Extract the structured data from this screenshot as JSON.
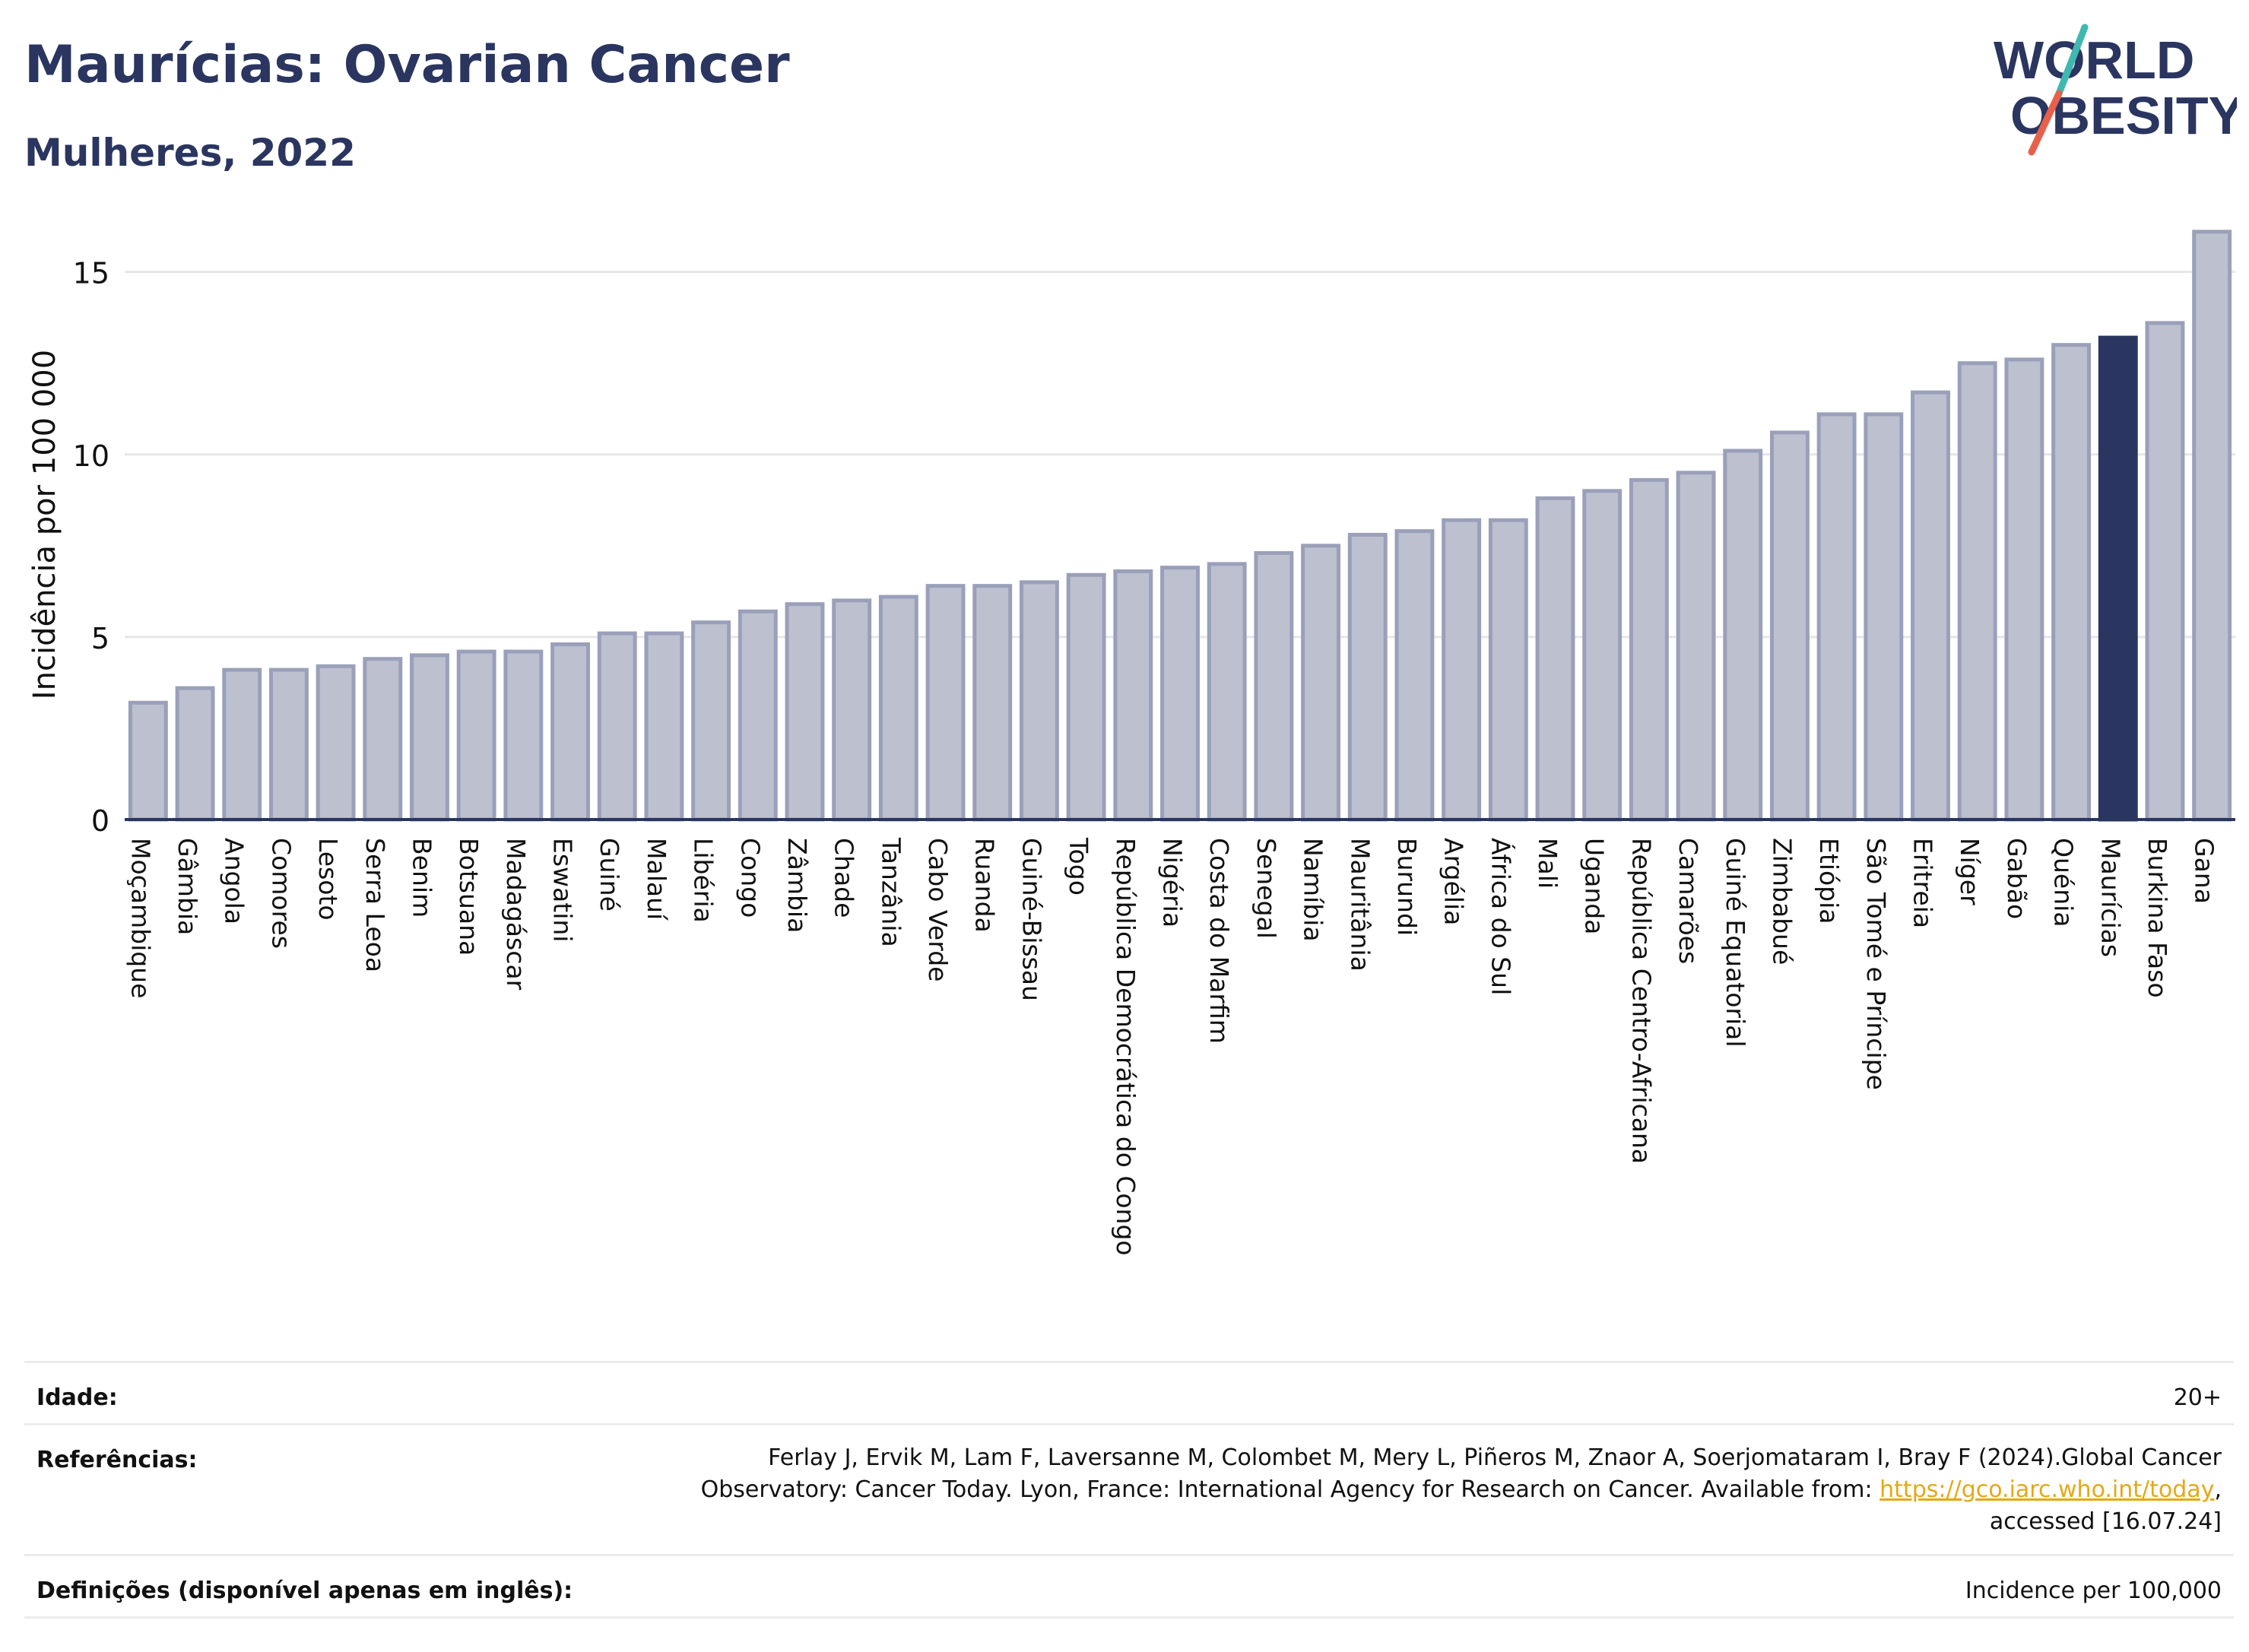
{
  "header": {
    "title": "Maurícias: Ovarian Cancer",
    "subtitle": "Mulheres, 2022"
  },
  "logo": {
    "line1": "WORLD",
    "line2": "OBESITY",
    "slash_color_top": "#3fb8b0",
    "slash_color_bottom": "#e8604c"
  },
  "colors": {
    "bar": "#bcc0cf",
    "bar_border": "#9aa0b9",
    "highlight": "#2a3560",
    "grid": "#e6e6e6"
  },
  "chart_data": {
    "type": "bar",
    "ylabel": "Incidência por 100 000",
    "xlabel": "",
    "ylim": [
      0,
      16.2
    ],
    "yticks": [
      0,
      5,
      10,
      15
    ],
    "grid": true,
    "highlight": "Maurícias",
    "categories": [
      "Moçambique",
      "Gâmbia",
      "Angola",
      "Comores",
      "Lesoto",
      "Serra Leoa",
      "Benim",
      "Botsuana",
      "Madagáscar",
      "Eswatini",
      "Guiné",
      "Malauí",
      "Libéria",
      "Congo",
      "Zâmbia",
      "Chade",
      "Tanzânia",
      "Cabo Verde",
      "Ruanda",
      "Guiné-Bissau",
      "Togo",
      "República Democrática do Congo",
      "Nigéria",
      "Costa do Marfim",
      "Senegal",
      "Namíbia",
      "Mauritânia",
      "Burundi",
      "Argélia",
      "África do Sul",
      "Mali",
      "Uganda",
      "República Centro-Africana",
      "Camarões",
      "Guiné Equatorial",
      "Zimbabué",
      "Etiópia",
      "São Tomé e Príncipe",
      "Eritreia",
      "Níger",
      "Gabão",
      "Quénia",
      "Maurícias",
      "Burkina Faso",
      "Gana"
    ],
    "values": [
      3.2,
      3.6,
      4.1,
      4.1,
      4.2,
      4.4,
      4.5,
      4.6,
      4.6,
      4.8,
      5.1,
      5.1,
      5.4,
      5.7,
      5.9,
      6.0,
      6.1,
      6.4,
      6.4,
      6.5,
      6.7,
      6.8,
      6.9,
      7.0,
      7.3,
      7.5,
      7.8,
      7.9,
      8.2,
      8.2,
      8.8,
      9.0,
      9.3,
      9.5,
      10.1,
      10.6,
      11.1,
      11.1,
      11.7,
      12.5,
      12.6,
      13.0,
      13.2,
      13.6,
      16.1
    ]
  },
  "footer": {
    "age_label": "Idade:",
    "age_value": "20+",
    "ref_label": "Referências:",
    "ref_line1": "Ferlay J, Ervik M, Lam F, Laversanne M, Colombet M, Mery L, Piñeros M, Znaor A, Soerjomataram I, Bray F (2024).Global Cancer",
    "ref_line2_prefix": "Observatory: Cancer Today. Lyon, France: International Agency for Research on Cancer. Available from: ",
    "ref_link": "https://gco.iarc.who.int/today",
    "ref_line2_suffix": ",",
    "ref_line3": "accessed [16.07.24]",
    "def_label": "Definições (disponível apenas em inglês):",
    "def_value": "Incidence per 100,000"
  }
}
